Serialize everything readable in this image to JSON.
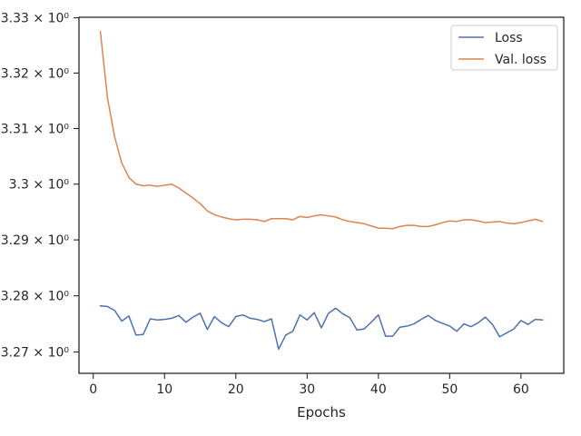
{
  "chart_data": {
    "type": "line",
    "xlabel": "Epochs",
    "ylabel": "",
    "xlim": [
      -2,
      66
    ],
    "ylim": [
      3.2662,
      3.3301
    ],
    "log_y": true,
    "xticks": [
      0,
      10,
      20,
      30,
      40,
      50,
      60
    ],
    "yticks": [
      {
        "value": 3.27,
        "label": "3.27 × 10⁰"
      },
      {
        "value": 3.28,
        "label": "3.28 × 10⁰"
      },
      {
        "value": 3.29,
        "label": "3.29 × 10⁰"
      },
      {
        "value": 3.3,
        "label": "3.3 × 10⁰"
      },
      {
        "value": 3.31,
        "label": "3.31 × 10⁰"
      },
      {
        "value": 3.32,
        "label": "3.32 × 10⁰"
      },
      {
        "value": 3.33,
        "label": "3.33 × 10⁰"
      }
    ],
    "grid": false,
    "legend_position": "top-right",
    "x": [
      1,
      2,
      3,
      4,
      5,
      6,
      7,
      8,
      9,
      10,
      11,
      12,
      13,
      14,
      15,
      16,
      17,
      18,
      19,
      20,
      21,
      22,
      23,
      24,
      25,
      26,
      27,
      28,
      29,
      30,
      31,
      32,
      33,
      34,
      35,
      36,
      37,
      38,
      39,
      40,
      41,
      42,
      43,
      44,
      45,
      46,
      47,
      48,
      49,
      50,
      51,
      52,
      53,
      54,
      55,
      56,
      57,
      58,
      59,
      60,
      61,
      62,
      63
    ],
    "series": [
      {
        "name": "Loss",
        "color": "#4c72b0",
        "values": [
          3.2782,
          3.2781,
          3.2774,
          3.2755,
          3.2764,
          3.273,
          3.2731,
          3.2759,
          3.2757,
          3.2758,
          3.276,
          3.2765,
          3.2753,
          3.2762,
          3.2769,
          3.274,
          3.2763,
          3.2752,
          3.2745,
          3.2763,
          3.2766,
          3.276,
          3.2758,
          3.2754,
          3.2759,
          3.2705,
          3.273,
          3.2737,
          3.2766,
          3.2757,
          3.277,
          3.2743,
          3.2769,
          3.2778,
          3.2768,
          3.2761,
          3.2739,
          3.2741,
          3.2753,
          3.2766,
          3.2728,
          3.2728,
          3.2744,
          3.2746,
          3.275,
          3.2758,
          3.2765,
          3.2756,
          3.2751,
          3.2746,
          3.2737,
          3.275,
          3.2745,
          3.2752,
          3.2762,
          3.2749,
          3.2727,
          3.2734,
          3.2741,
          3.2756,
          3.2749,
          3.2758,
          3.2757
        ]
      },
      {
        "name": "Val. loss",
        "color": "#dd8452",
        "values": [
          3.3275,
          3.3155,
          3.3085,
          3.3038,
          3.3012,
          3.3,
          3.2997,
          3.2998,
          3.2996,
          3.2998,
          3.3,
          3.2993,
          3.2984,
          3.2975,
          3.2965,
          3.2952,
          3.2945,
          3.2941,
          3.2938,
          3.2936,
          3.2937,
          3.2937,
          3.2936,
          3.2933,
          3.2938,
          3.2938,
          3.2938,
          3.2936,
          3.2942,
          3.294,
          3.2943,
          3.2945,
          3.2943,
          3.2941,
          3.2936,
          3.2933,
          3.2931,
          3.2929,
          3.2925,
          3.2921,
          3.2921,
          3.292,
          3.2924,
          3.2926,
          3.2926,
          3.2924,
          3.2924,
          3.2927,
          3.2931,
          3.2934,
          3.2933,
          3.2936,
          3.2936,
          3.2934,
          3.2931,
          3.2932,
          3.2933,
          3.293,
          3.2929,
          3.2931,
          3.2934,
          3.2937,
          3.2933
        ]
      }
    ]
  }
}
